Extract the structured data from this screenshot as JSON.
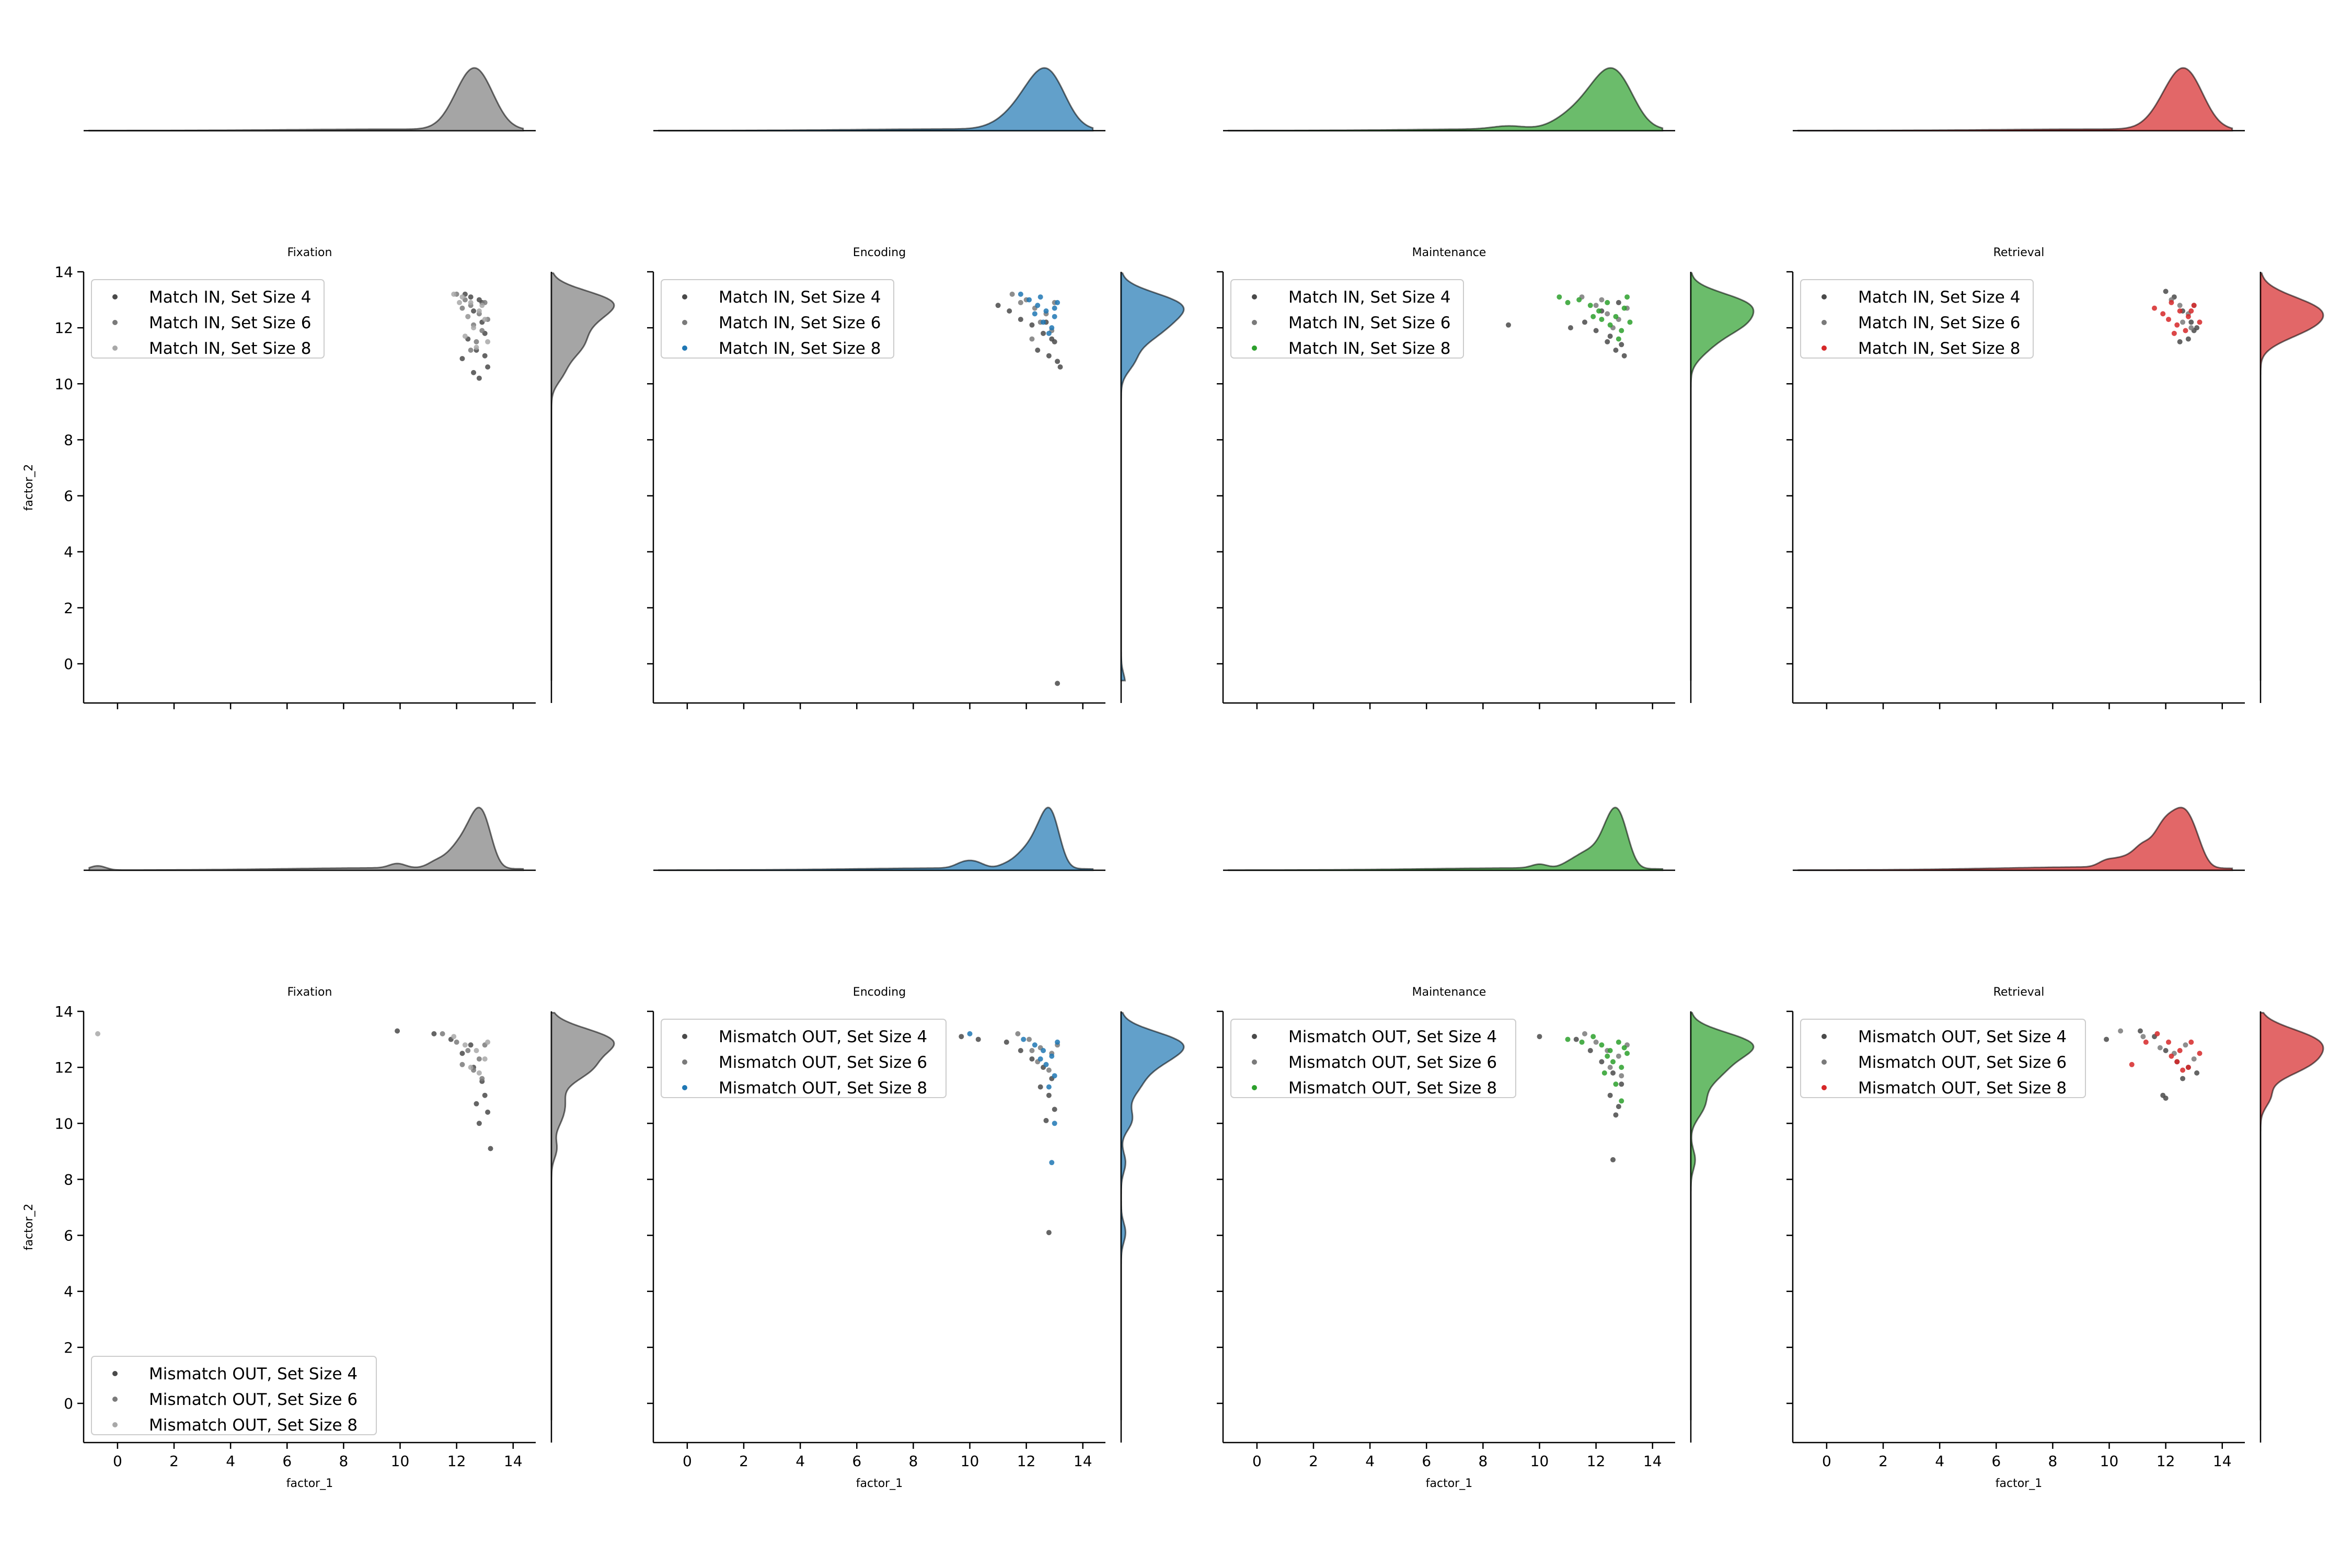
{
  "colors": {
    "Fixation": "#7f7f7f",
    "Encoding": "#1f77b4",
    "Maintenance": "#2ca02c",
    "Retrieval": "#d62728",
    "dark_point": "#4a4a4a",
    "mid_point": "#7a7a7a"
  },
  "chart_data": [
    {
      "type": "scatter",
      "title": "Fixation",
      "xlabel": "",
      "ylabel": "factor_2",
      "xlim": [
        -1.2,
        14.8
      ],
      "ylim": [
        -1.4,
        14.0
      ],
      "xticks": [
        0,
        2,
        4,
        6,
        8,
        10,
        12,
        14
      ],
      "yticks": [
        0,
        2,
        4,
        6,
        8,
        10,
        12,
        14
      ],
      "legend": "upper-left",
      "series": [
        {
          "name": "Match IN, Set Size 4",
          "x": [
            12.3,
            12.5,
            12.8,
            12.6,
            12.9,
            13.0,
            12.4,
            12.7,
            13.1,
            12.2,
            12.6,
            12.9,
            13.0,
            12.8
          ],
          "y": [
            13.2,
            13.1,
            13.0,
            12.6,
            12.2,
            11.8,
            11.6,
            11.2,
            10.6,
            10.9,
            10.4,
            12.9,
            11.0,
            10.2
          ]
        },
        {
          "name": "Match IN, Set Size 6",
          "x": [
            12.0,
            12.3,
            12.5,
            12.8,
            13.0,
            12.6,
            12.4,
            12.9,
            13.1,
            12.7,
            12.2,
            12.5
          ],
          "y": [
            13.2,
            13.0,
            12.8,
            12.5,
            12.9,
            12.1,
            12.4,
            11.9,
            12.3,
            11.5,
            12.7,
            11.2
          ]
        },
        {
          "name": "Match IN, Set Size 8",
          "x": [
            11.9,
            12.2,
            12.5,
            12.8,
            13.0,
            12.6,
            12.3,
            12.9,
            13.1,
            12.4,
            12.7,
            12.1
          ],
          "y": [
            13.2,
            13.1,
            12.9,
            12.6,
            12.3,
            12.0,
            11.7,
            12.8,
            11.5,
            12.4,
            11.3,
            12.9
          ]
        }
      ]
    },
    {
      "type": "scatter",
      "title": "Encoding",
      "xlabel": "",
      "ylabel": "",
      "xlim": [
        -1.2,
        14.8
      ],
      "ylim": [
        -1.4,
        14.0
      ],
      "xticks": [
        0,
        2,
        4,
        6,
        8,
        10,
        12,
        14
      ],
      "yticks": [
        0,
        2,
        4,
        6,
        8,
        10,
        12,
        14
      ],
      "legend": "upper-left",
      "series": [
        {
          "name": "Match IN, Set Size 4",
          "x": [
            11.0,
            11.4,
            11.8,
            12.2,
            12.6,
            13.0,
            12.4,
            12.8,
            13.1,
            12.9,
            13.2,
            12.7,
            13.1
          ],
          "y": [
            12.8,
            12.6,
            12.3,
            12.1,
            11.8,
            11.5,
            11.2,
            11.0,
            10.8,
            11.6,
            10.6,
            12.2,
            -0.7
          ]
        },
        {
          "name": "Match IN, Set Size 6",
          "x": [
            11.5,
            12.0,
            12.3,
            12.7,
            13.0,
            12.5,
            12.9,
            11.8,
            12.2
          ],
          "y": [
            13.2,
            13.0,
            12.7,
            12.5,
            12.9,
            12.2,
            11.9,
            12.9,
            11.6
          ]
        },
        {
          "name": "Match IN, Set Size 8",
          "x": [
            11.8,
            12.1,
            12.4,
            12.7,
            13.0,
            13.1,
            12.6,
            12.9,
            12.3,
            12.8,
            12.5,
            13.0
          ],
          "y": [
            13.2,
            13.0,
            12.8,
            12.6,
            12.4,
            12.9,
            12.2,
            12.0,
            12.5,
            11.8,
            13.1,
            12.7
          ]
        }
      ]
    },
    {
      "type": "scatter",
      "title": "Maintenance",
      "xlabel": "",
      "ylabel": "",
      "xlim": [
        -1.2,
        14.8
      ],
      "ylim": [
        -1.4,
        14.0
      ],
      "xticks": [
        0,
        2,
        4,
        6,
        8,
        10,
        12,
        14
      ],
      "yticks": [
        0,
        2,
        4,
        6,
        8,
        10,
        12,
        14
      ],
      "legend": "upper-left",
      "series": [
        {
          "name": "Match IN, Set Size 4",
          "x": [
            8.9,
            11.1,
            11.6,
            12.0,
            12.4,
            12.7,
            13.0,
            12.5,
            12.9,
            12.2,
            12.8
          ],
          "y": [
            12.1,
            12.0,
            12.2,
            11.9,
            11.5,
            11.2,
            11.0,
            11.7,
            11.4,
            12.6,
            12.9
          ]
        },
        {
          "name": "Match IN, Set Size 6",
          "x": [
            11.5,
            12.0,
            12.4,
            12.8,
            13.1,
            12.6,
            12.2
          ],
          "y": [
            13.1,
            12.8,
            12.5,
            12.3,
            12.7,
            12.0,
            13.0
          ]
        },
        {
          "name": "Match IN, Set Size 8",
          "x": [
            10.7,
            11.0,
            11.4,
            11.8,
            12.1,
            12.4,
            12.7,
            13.0,
            13.2,
            12.5,
            12.9,
            12.2,
            12.8,
            13.1,
            11.9
          ],
          "y": [
            13.1,
            12.9,
            13.0,
            12.8,
            12.6,
            12.9,
            12.4,
            12.7,
            12.2,
            12.1,
            11.9,
            12.3,
            11.6,
            13.1,
            12.4
          ]
        }
      ]
    },
    {
      "type": "scatter",
      "title": "Retrieval",
      "xlabel": "",
      "ylabel": "",
      "xlim": [
        -1.2,
        14.8
      ],
      "ylim": [
        -1.4,
        14.0
      ],
      "xticks": [
        0,
        2,
        4,
        6,
        8,
        10,
        12,
        14
      ],
      "yticks": [
        0,
        2,
        4,
        6,
        8,
        10,
        12,
        14
      ],
      "legend": "upper-left",
      "series": [
        {
          "name": "Match IN, Set Size 4",
          "x": [
            12.0,
            12.3,
            12.6,
            12.9,
            13.0,
            12.8,
            12.5,
            13.1
          ],
          "y": [
            13.3,
            13.1,
            12.6,
            12.2,
            11.9,
            11.6,
            11.5,
            12.0
          ]
        },
        {
          "name": "Match IN, Set Size 6",
          "x": [
            12.2,
            12.5,
            12.8,
            13.0,
            12.6,
            12.9
          ],
          "y": [
            13.0,
            12.8,
            12.5,
            12.8,
            12.2,
            12.0
          ]
        },
        {
          "name": "Match IN, Set Size 8",
          "x": [
            11.6,
            11.9,
            12.2,
            12.5,
            12.8,
            13.0,
            13.2,
            12.4,
            12.7,
            12.1,
            12.9,
            12.3
          ],
          "y": [
            12.7,
            12.5,
            12.9,
            12.6,
            12.4,
            12.8,
            12.2,
            12.1,
            11.9,
            12.3,
            12.6,
            11.8
          ]
        }
      ]
    },
    {
      "type": "scatter",
      "title": "Fixation",
      "xlabel": "factor_1",
      "ylabel": "factor_2",
      "xlim": [
        -1.2,
        14.8
      ],
      "ylim": [
        -1.4,
        14.0
      ],
      "xticks": [
        0,
        2,
        4,
        6,
        8,
        10,
        12,
        14
      ],
      "yticks": [
        0,
        2,
        4,
        6,
        8,
        10,
        12,
        14
      ],
      "legend": "lower-left",
      "series": [
        {
          "name": "Mismatch OUT, Set Size 4",
          "x": [
            9.9,
            11.2,
            11.8,
            12.2,
            12.6,
            12.9,
            13.0,
            12.7,
            13.1,
            12.8,
            13.2,
            12.5
          ],
          "y": [
            13.3,
            13.2,
            13.0,
            12.5,
            12.0,
            11.5,
            11.0,
            10.7,
            10.4,
            10.0,
            9.1,
            12.8
          ]
        },
        {
          "name": "Mismatch OUT, Set Size 6",
          "x": [
            11.5,
            12.0,
            12.4,
            12.8,
            13.0,
            12.6,
            12.2,
            12.9
          ],
          "y": [
            13.2,
            12.9,
            12.6,
            12.3,
            12.8,
            11.9,
            12.1,
            11.6
          ]
        },
        {
          "name": "Mismatch OUT, Set Size 8",
          "x": [
            -0.7,
            11.9,
            12.3,
            12.7,
            13.0,
            12.5,
            12.8,
            13.1
          ],
          "y": [
            13.2,
            13.1,
            12.8,
            12.6,
            12.3,
            12.0,
            11.8,
            12.9
          ]
        }
      ]
    },
    {
      "type": "scatter",
      "title": "Encoding",
      "xlabel": "factor_1",
      "ylabel": "",
      "xlim": [
        -1.2,
        14.8
      ],
      "ylim": [
        -1.4,
        14.0
      ],
      "xticks": [
        0,
        2,
        4,
        6,
        8,
        10,
        12,
        14
      ],
      "yticks": [
        0,
        2,
        4,
        6,
        8,
        10,
        12,
        14
      ],
      "legend": "upper-left",
      "series": [
        {
          "name": "Mismatch OUT, Set Size 4",
          "x": [
            9.7,
            10.3,
            11.3,
            11.8,
            12.2,
            12.6,
            12.9,
            12.5,
            12.8,
            13.0,
            12.7,
            12.8
          ],
          "y": [
            13.1,
            13.0,
            12.9,
            12.6,
            12.3,
            12.0,
            11.6,
            11.3,
            11.0,
            10.5,
            10.1,
            6.1
          ]
        },
        {
          "name": "Mismatch OUT, Set Size 6",
          "x": [
            11.7,
            12.1,
            12.5,
            12.9,
            13.1,
            12.4,
            12.8,
            12.2
          ],
          "y": [
            13.2,
            13.0,
            12.7,
            12.5,
            12.8,
            12.2,
            11.9,
            12.6
          ]
        },
        {
          "name": "Mismatch OUT, Set Size 8",
          "x": [
            10.0,
            11.9,
            12.3,
            12.6,
            12.9,
            13.1,
            12.7,
            13.0,
            12.5,
            12.8,
            13.0,
            12.9
          ],
          "y": [
            13.2,
            13.0,
            12.8,
            12.6,
            12.4,
            12.9,
            12.1,
            11.7,
            12.3,
            11.3,
            10.0,
            8.6
          ]
        }
      ]
    },
    {
      "type": "scatter",
      "title": "Maintenance",
      "xlabel": "factor_1",
      "ylabel": "",
      "xlim": [
        -1.2,
        14.8
      ],
      "ylim": [
        -1.4,
        14.0
      ],
      "xticks": [
        0,
        2,
        4,
        6,
        8,
        10,
        12,
        14
      ],
      "yticks": [
        0,
        2,
        4,
        6,
        8,
        10,
        12,
        14
      ],
      "legend": "upper-left",
      "series": [
        {
          "name": "Mismatch OUT, Set Size 4",
          "x": [
            10.0,
            11.3,
            11.8,
            12.2,
            12.6,
            12.9,
            12.5,
            12.8,
            12.7,
            12.6
          ],
          "y": [
            13.1,
            13.0,
            12.6,
            12.2,
            11.8,
            11.4,
            11.0,
            10.6,
            10.3,
            8.7
          ]
        },
        {
          "name": "Mismatch OUT, Set Size 6",
          "x": [
            11.6,
            12.0,
            12.4,
            12.8,
            13.1,
            12.5,
            12.9
          ],
          "y": [
            13.2,
            12.9,
            12.6,
            12.4,
            12.8,
            12.0,
            11.7
          ]
        },
        {
          "name": "Mismatch OUT, Set Size 8",
          "x": [
            11.0,
            11.5,
            11.9,
            12.2,
            12.5,
            12.8,
            13.1,
            12.6,
            12.9,
            12.3,
            13.0,
            12.7,
            12.4,
            12.9
          ],
          "y": [
            13.0,
            12.9,
            13.1,
            12.8,
            12.6,
            12.9,
            12.5,
            12.2,
            12.0,
            11.8,
            12.7,
            11.4,
            12.4,
            10.8
          ]
        }
      ]
    },
    {
      "type": "scatter",
      "title": "Retrieval",
      "xlabel": "factor_1",
      "ylabel": "",
      "xlim": [
        -1.2,
        14.8
      ],
      "ylim": [
        -1.4,
        14.0
      ],
      "xticks": [
        0,
        2,
        4,
        6,
        8,
        10,
        12,
        14
      ],
      "yticks": [
        0,
        2,
        4,
        6,
        8,
        10,
        12,
        14
      ],
      "legend": "upper-left",
      "series": [
        {
          "name": "Mismatch OUT, Set Size 4",
          "x": [
            9.9,
            11.1,
            11.6,
            12.0,
            12.4,
            12.8,
            13.1,
            12.6,
            11.9,
            12.0
          ],
          "y": [
            13.0,
            13.3,
            13.1,
            12.6,
            12.2,
            12.0,
            11.8,
            11.6,
            11.0,
            10.9
          ]
        },
        {
          "name": "Mismatch OUT, Set Size 6",
          "x": [
            10.4,
            11.2,
            11.8,
            12.3,
            12.7,
            13.0
          ],
          "y": [
            13.3,
            13.1,
            12.7,
            12.5,
            12.8,
            12.3
          ]
        },
        {
          "name": "Mismatch OUT, Set Size 8",
          "x": [
            10.8,
            11.3,
            11.7,
            12.1,
            12.5,
            12.9,
            13.2,
            12.4,
            12.8,
            12.2,
            12.6
          ],
          "y": [
            12.1,
            12.9,
            13.2,
            12.9,
            12.6,
            12.9,
            12.5,
            12.2,
            12.0,
            12.4,
            11.9
          ]
        }
      ]
    }
  ]
}
